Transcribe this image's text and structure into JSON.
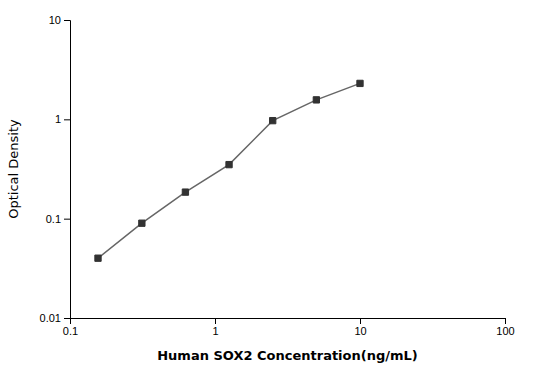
{
  "chart_data": {
    "type": "line",
    "x": [
      0.156,
      0.313,
      0.625,
      1.25,
      2.5,
      5,
      10
    ],
    "values": [
      0.04,
      0.09,
      0.185,
      0.35,
      0.97,
      1.57,
      2.3
    ],
    "xlabel": "Human SOX2 Concentration(ng/mL)",
    "ylabel": "Optical Density",
    "xlim": [
      0.1,
      100
    ],
    "ylim": [
      0.01,
      10
    ],
    "xticks": [
      0.1,
      1,
      10,
      100
    ],
    "yticks": [
      0.01,
      0.1,
      1,
      10
    ],
    "log": true,
    "grid": false,
    "color": "#666666",
    "marker": "square"
  }
}
